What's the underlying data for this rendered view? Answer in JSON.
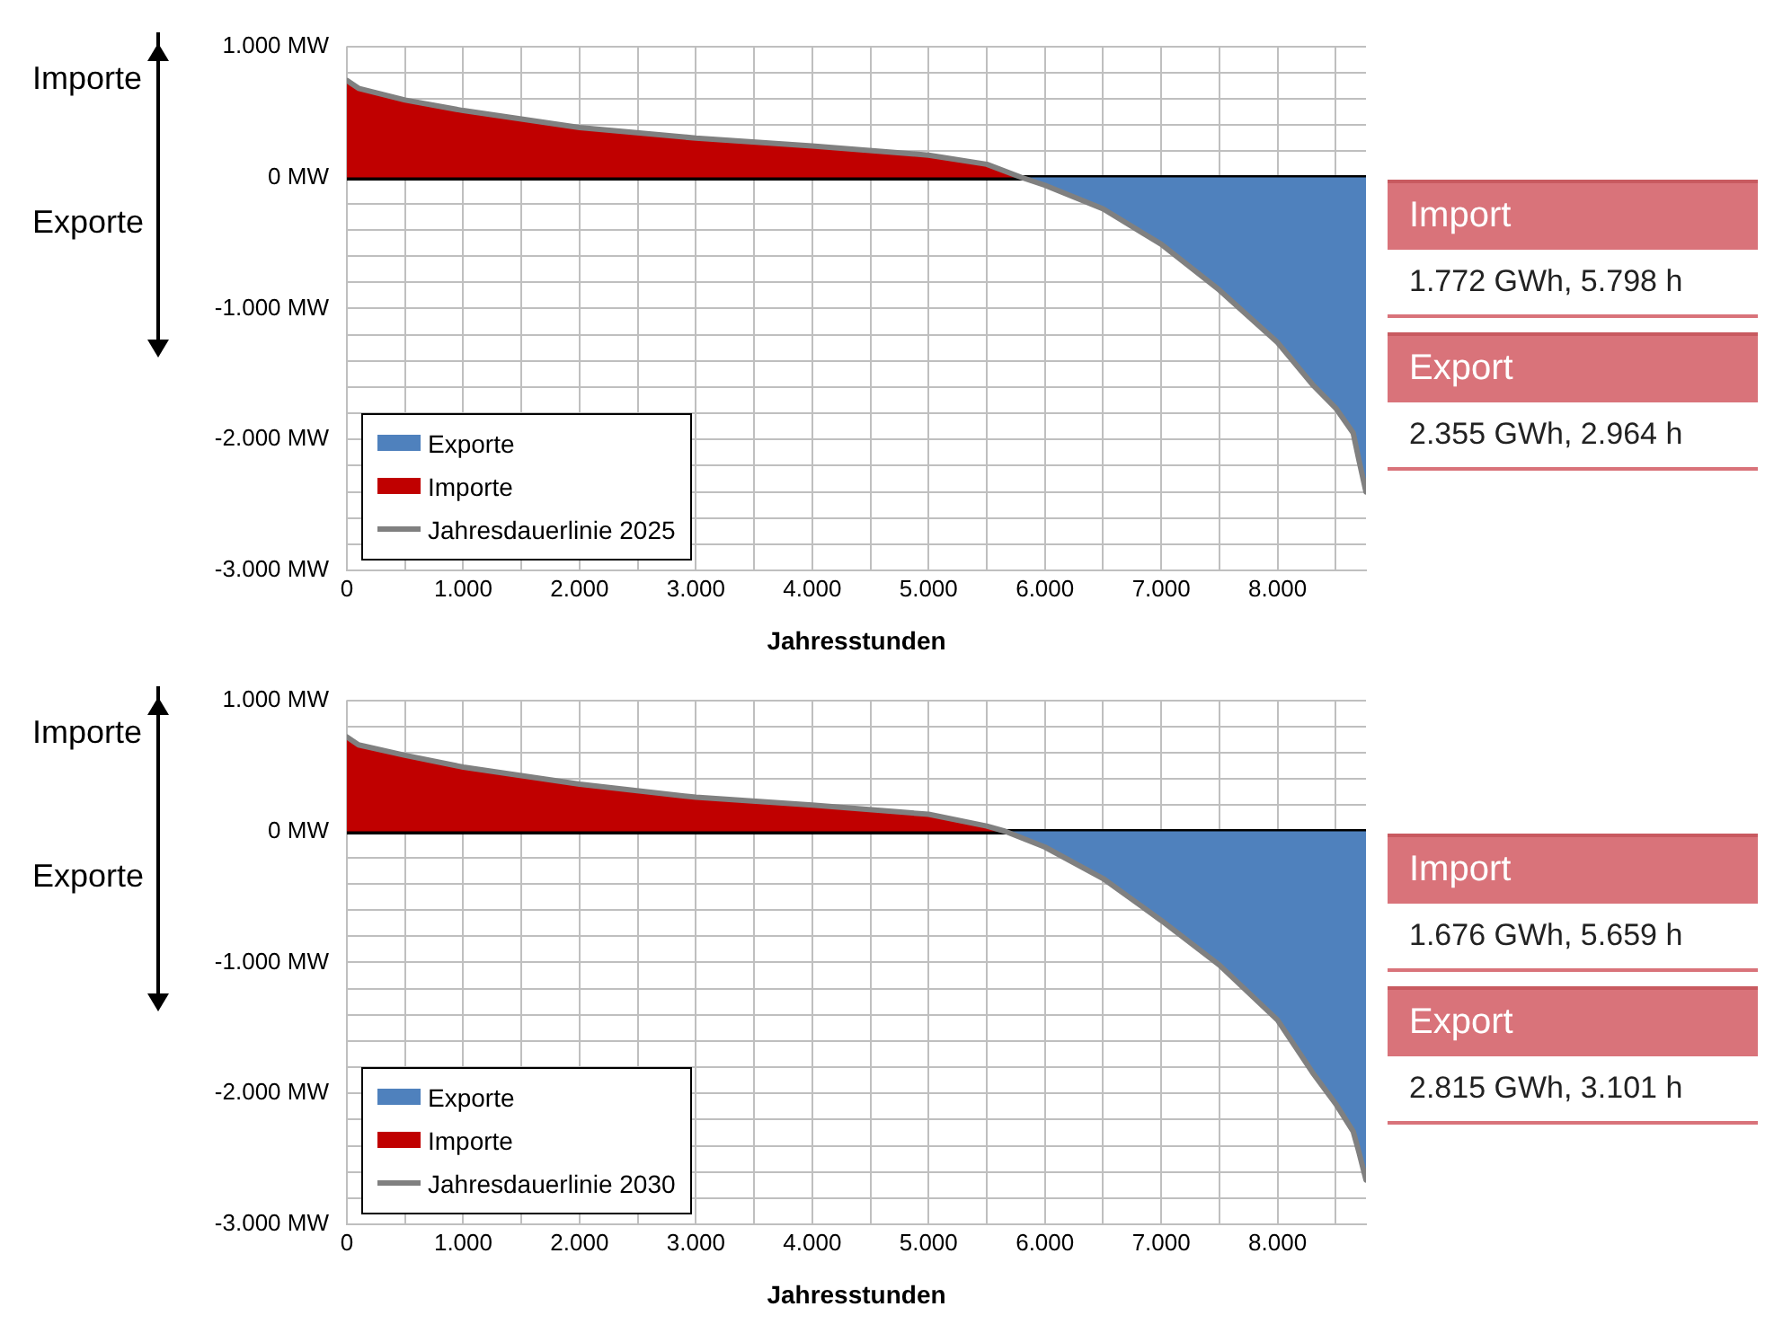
{
  "chart_data": [
    {
      "type": "area",
      "xlabel": "Jahresstunden",
      "xlim": [
        0,
        8760
      ],
      "ylim": [
        -3000,
        1000
      ],
      "xticks": [
        0,
        {
          "value": 500,
          "label": null
        },
        {
          "value": 1000,
          "label": "1.000"
        },
        {
          "value": 1500,
          "label": null
        },
        {
          "value": 2000,
          "label": "2.000"
        },
        {
          "value": 2500,
          "label": null
        },
        {
          "value": 3000,
          "label": "3.000"
        },
        {
          "value": 3500,
          "label": null
        },
        {
          "value": 4000,
          "label": "4.000"
        },
        {
          "value": 4500,
          "label": null
        },
        {
          "value": 5000,
          "label": "5.000"
        },
        {
          "value": 5500,
          "label": null
        },
        {
          "value": 6000,
          "label": "6.000"
        },
        {
          "value": 6500,
          "label": null
        },
        {
          "value": 7000,
          "label": "7.000"
        },
        {
          "value": 7500,
          "label": null
        },
        {
          "value": 8000,
          "label": "8.000"
        },
        {
          "value": 8500,
          "label": null
        }
      ],
      "yticks": [
        {
          "value": -3000,
          "label": "-3.000 MW"
        },
        {
          "value": -2800,
          "label": null
        },
        {
          "value": -2600,
          "label": null
        },
        {
          "value": -2400,
          "label": null
        },
        {
          "value": -2200,
          "label": null
        },
        {
          "value": -2000,
          "label": "-2.000 MW"
        },
        {
          "value": -1800,
          "label": null
        },
        {
          "value": -1600,
          "label": null
        },
        {
          "value": -1400,
          "label": null
        },
        {
          "value": -1200,
          "label": null
        },
        {
          "value": -1000,
          "label": "-1.000 MW"
        },
        {
          "value": -800,
          "label": null
        },
        {
          "value": -600,
          "label": null
        },
        {
          "value": -400,
          "label": null
        },
        {
          "value": -200,
          "label": null
        },
        {
          "value": 0,
          "label": "0 MW"
        },
        {
          "value": 200,
          "label": null
        },
        {
          "value": 400,
          "label": null
        },
        {
          "value": 600,
          "label": null
        },
        {
          "value": 800,
          "label": null
        },
        {
          "value": 1000,
          "label": "1.000 MW"
        }
      ],
      "grid": true,
      "legend": "bottom left",
      "series": [
        {
          "name": "Exporte",
          "type": "area",
          "color": "#4f81bd",
          "x": [
            5798,
            6000,
            6500,
            7000,
            7500,
            8000,
            8300,
            8500,
            8650,
            8700,
            8760
          ],
          "values": [
            0,
            -60,
            -240,
            -510,
            -860,
            -1260,
            -1580,
            -1760,
            -1950,
            -2160,
            -2400
          ]
        },
        {
          "name": "Importe",
          "type": "area",
          "color": "#c00000",
          "x": [
            0,
            100,
            500,
            1000,
            2000,
            3000,
            4000,
            5000,
            5500,
            5798
          ],
          "values": [
            740,
            680,
            590,
            510,
            380,
            300,
            240,
            170,
            100,
            0
          ]
        },
        {
          "name": "Jahresdauerlinie 2025",
          "type": "line",
          "color": "#808080",
          "x": [
            0,
            100,
            500,
            1000,
            2000,
            3000,
            4000,
            5000,
            5500,
            5798,
            6000,
            6500,
            7000,
            7500,
            8000,
            8300,
            8500,
            8650,
            8700,
            8760
          ],
          "values": [
            740,
            680,
            590,
            510,
            380,
            300,
            240,
            170,
            100,
            0,
            -60,
            -240,
            -510,
            -860,
            -1260,
            -1580,
            -1760,
            -1950,
            -2160,
            -2400
          ]
        }
      ],
      "annotations": [
        "Importe",
        "Exporte",
        "Import",
        "1.772 GWh, 5.798 h",
        "Export",
        "2.355 GWh, 2.964 h"
      ]
    },
    {
      "type": "area",
      "xlabel": "Jahresstunden",
      "xlim": [
        0,
        8760
      ],
      "ylim": [
        -3000,
        1000
      ],
      "xticks": [
        0,
        {
          "value": 500,
          "label": null
        },
        {
          "value": 1000,
          "label": "1.000"
        },
        {
          "value": 1500,
          "label": null
        },
        {
          "value": 2000,
          "label": "2.000"
        },
        {
          "value": 2500,
          "label": null
        },
        {
          "value": 3000,
          "label": "3.000"
        },
        {
          "value": 3500,
          "label": null
        },
        {
          "value": 4000,
          "label": "4.000"
        },
        {
          "value": 4500,
          "label": null
        },
        {
          "value": 5000,
          "label": "5.000"
        },
        {
          "value": 5500,
          "label": null
        },
        {
          "value": 6000,
          "label": "6.000"
        },
        {
          "value": 6500,
          "label": null
        },
        {
          "value": 7000,
          "label": "7.000"
        },
        {
          "value": 7500,
          "label": null
        },
        {
          "value": 8000,
          "label": "8.000"
        },
        {
          "value": 8500,
          "label": null
        }
      ],
      "yticks": [
        {
          "value": -3000,
          "label": "-3.000 MW"
        },
        {
          "value": -2800,
          "label": null
        },
        {
          "value": -2600,
          "label": null
        },
        {
          "value": -2400,
          "label": null
        },
        {
          "value": -2200,
          "label": null
        },
        {
          "value": -2000,
          "label": "-2.000 MW"
        },
        {
          "value": -1800,
          "label": null
        },
        {
          "value": -1600,
          "label": null
        },
        {
          "value": -1400,
          "label": null
        },
        {
          "value": -1200,
          "label": null
        },
        {
          "value": -1000,
          "label": "-1.000 MW"
        },
        {
          "value": -800,
          "label": null
        },
        {
          "value": -600,
          "label": null
        },
        {
          "value": -400,
          "label": null
        },
        {
          "value": -200,
          "label": null
        },
        {
          "value": 0,
          "label": "0 MW"
        },
        {
          "value": 200,
          "label": null
        },
        {
          "value": 400,
          "label": null
        },
        {
          "value": 600,
          "label": null
        },
        {
          "value": 800,
          "label": null
        },
        {
          "value": 1000,
          "label": "1.000 MW"
        }
      ],
      "grid": true,
      "legend": "bottom left",
      "series": [
        {
          "name": "Exporte",
          "type": "area",
          "color": "#4f81bd",
          "x": [
            5659,
            6000,
            6500,
            7000,
            7500,
            8000,
            8300,
            8500,
            8650,
            8700,
            8760
          ],
          "values": [
            0,
            -120,
            -360,
            -680,
            -1020,
            -1440,
            -1840,
            -2080,
            -2290,
            -2450,
            -2660
          ]
        },
        {
          "name": "Importe",
          "type": "area",
          "color": "#c00000",
          "x": [
            0,
            100,
            500,
            1000,
            2000,
            3000,
            4000,
            5000,
            5500,
            5659
          ],
          "values": [
            720,
            660,
            580,
            490,
            360,
            260,
            200,
            130,
            40,
            0
          ]
        },
        {
          "name": "Jahresdauerlinie 2030",
          "type": "line",
          "color": "#808080",
          "x": [
            0,
            100,
            500,
            1000,
            2000,
            3000,
            4000,
            5000,
            5500,
            5659,
            6000,
            6500,
            7000,
            7500,
            8000,
            8300,
            8500,
            8650,
            8700,
            8760
          ],
          "values": [
            720,
            660,
            580,
            490,
            360,
            260,
            200,
            130,
            40,
            0,
            -120,
            -360,
            -680,
            -1020,
            -1440,
            -1840,
            -2080,
            -2290,
            -2450,
            -2660
          ]
        }
      ],
      "annotations": [
        "Importe",
        "Exporte",
        "Import",
        "1.676 GWh, 5.659 h",
        "Export",
        "2.815 GWh, 3.101 h"
      ]
    }
  ]
}
